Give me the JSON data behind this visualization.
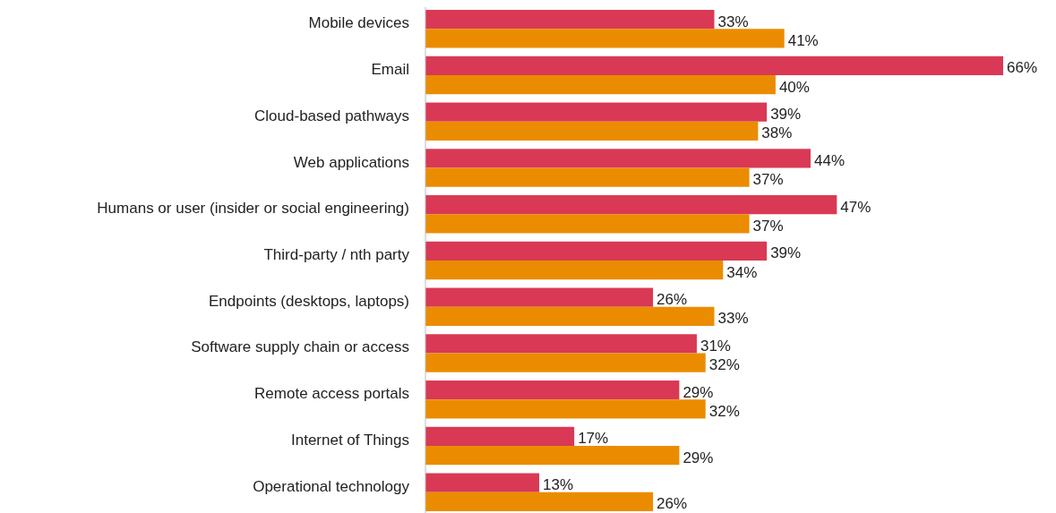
{
  "chart_data": {
    "type": "bar",
    "orientation": "horizontal",
    "categories": [
      "Mobile devices",
      "Email",
      "Cloud-based pathways",
      "Web applications",
      "Humans or user (insider or social engineering)",
      "Third-party / nth party",
      "Endpoints (desktops, laptops)",
      "Software supply chain or access",
      "Remote access portals",
      "Internet of Things",
      "Operational technology"
    ],
    "series": [
      {
        "color": "#d93954",
        "values": [
          33,
          66,
          39,
          44,
          47,
          39,
          26,
          31,
          29,
          17,
          13
        ],
        "value_labels": [
          "33%",
          "66%",
          "39%",
          "44%",
          "47%",
          "39%",
          "26%",
          "31%",
          "29%",
          "17%",
          "13%"
        ]
      },
      {
        "color": "#eb8c00",
        "values": [
          41,
          40,
          38,
          37,
          37,
          34,
          33,
          32,
          32,
          29,
          26
        ],
        "value_labels": [
          "41%",
          "40%",
          "38%",
          "37%",
          "37%",
          "34%",
          "33%",
          "32%",
          "32%",
          "29%",
          "26%"
        ]
      }
    ]
  }
}
